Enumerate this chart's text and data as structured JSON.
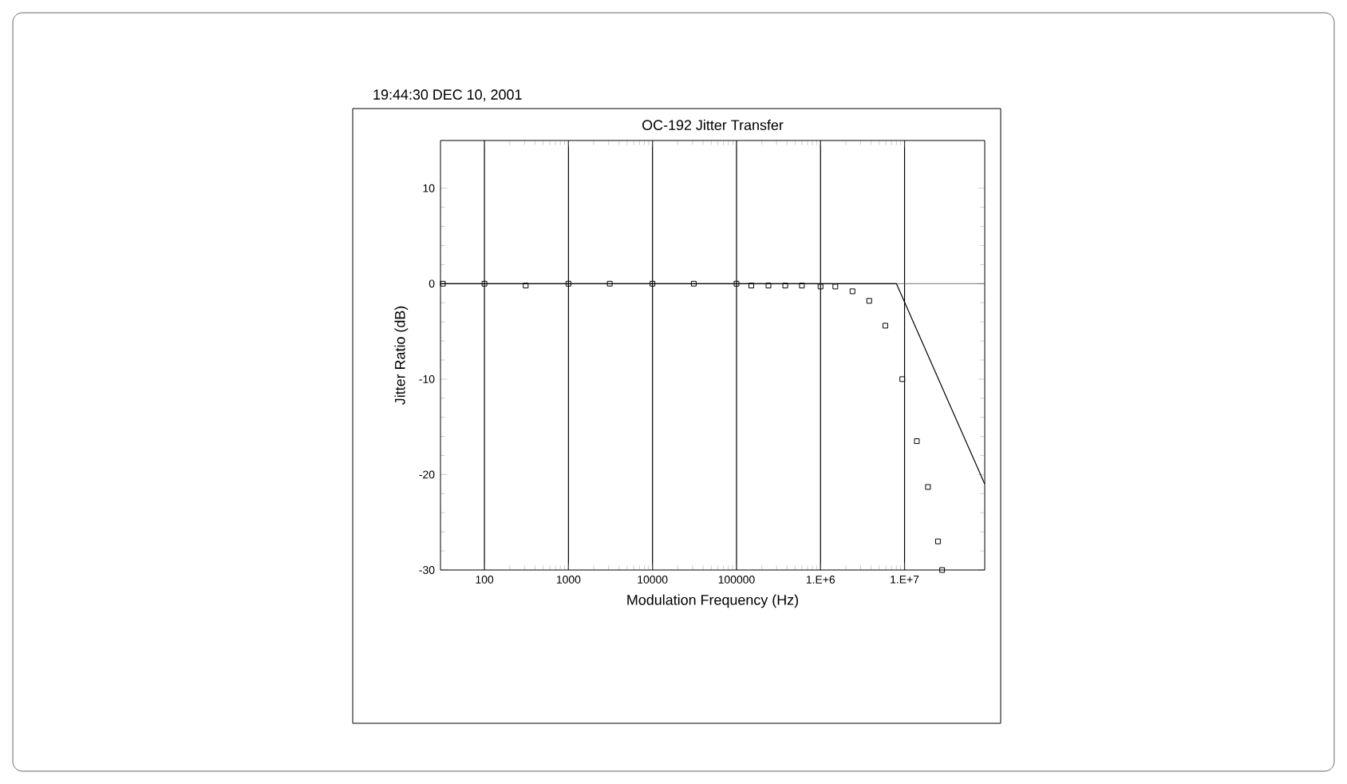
{
  "chart_data": {
    "type": "scatter",
    "title": "OC-192  Jitter Transfer",
    "xlabel": "Modulation Frequency (Hz)",
    "ylabel": "Jitter Ratio (dB)",
    "annotations": [
      "19:44:30  DEC 10, 2001"
    ],
    "log": "x",
    "grid": "x",
    "marker": "square",
    "xlim": [
      30,
      90000000
    ],
    "ylim": [
      -30,
      15
    ],
    "xticks": [
      100,
      1000,
      10000,
      100000,
      {
        "value": 1000000,
        "label": "1.E+6"
      },
      {
        "value": 10000000,
        "label": "1.E+7"
      }
    ],
    "yticks": [
      10,
      0,
      -10,
      -20,
      -30
    ],
    "ref_lines": [
      {
        "axis": "y",
        "value": 0,
        "color": "#555555"
      }
    ],
    "series": [
      {
        "color": "#000000",
        "x": [
          32,
          100,
          310,
          1000,
          3100,
          10000,
          31000,
          100000,
          150000,
          240000,
          380000,
          600000,
          1000000,
          1500000,
          2400000,
          3800000,
          5900000,
          9400000,
          14000000,
          19000000,
          25000000,
          28000000
        ],
        "values": [
          0,
          0,
          -0.2,
          0,
          0,
          0,
          0,
          0,
          -0.2,
          -0.2,
          -0.2,
          -0.2,
          -0.3,
          -0.3,
          -0.8,
          -1.8,
          -4.4,
          -10,
          -16.5,
          -21.3,
          -27,
          -30
        ]
      },
      {
        "type": "line",
        "color": "#000000",
        "marker": "none",
        "line_style": "solid",
        "x": [
          30,
          8000000,
          90000000
        ],
        "values": [
          0,
          0,
          -21
        ]
      }
    ]
  }
}
